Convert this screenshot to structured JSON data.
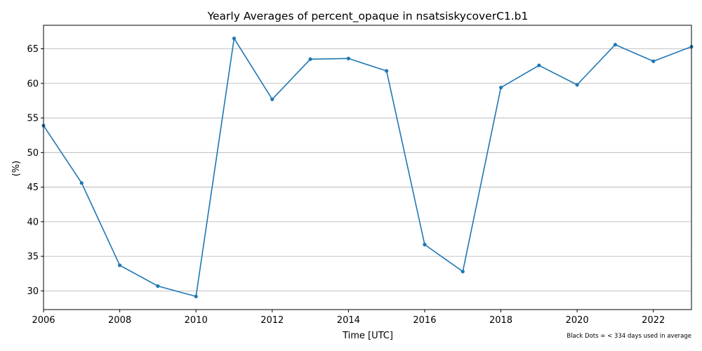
{
  "chart_data": {
    "type": "line",
    "title": "Yearly Averages of percent_opaque in nsatsiskycoverC1.b1",
    "xlabel": "Time [UTC]",
    "ylabel": "(%)",
    "note": "Black Dots = < 334 days used in average",
    "xlim": [
      2006,
      2023
    ],
    "ylim": [
      27.3,
      68.4
    ],
    "xticks": [
      2006,
      2008,
      2010,
      2012,
      2014,
      2016,
      2018,
      2020,
      2022
    ],
    "yticks": [
      30,
      35,
      40,
      45,
      50,
      55,
      60,
      65
    ],
    "grid": "horizontal",
    "line_color": "#1f77b4",
    "series": [
      {
        "x": [
          2006,
          2007,
          2008,
          2009,
          2010,
          2011,
          2012,
          2013,
          2014,
          2015,
          2016,
          2017,
          2018,
          2019,
          2020,
          2021,
          2022,
          2023
        ],
        "values": [
          53.9,
          45.6,
          33.7,
          30.7,
          29.2,
          66.5,
          57.7,
          63.5,
          63.6,
          61.8,
          36.7,
          32.8,
          59.4,
          62.6,
          59.8,
          65.6,
          63.2,
          65.3
        ]
      }
    ]
  }
}
